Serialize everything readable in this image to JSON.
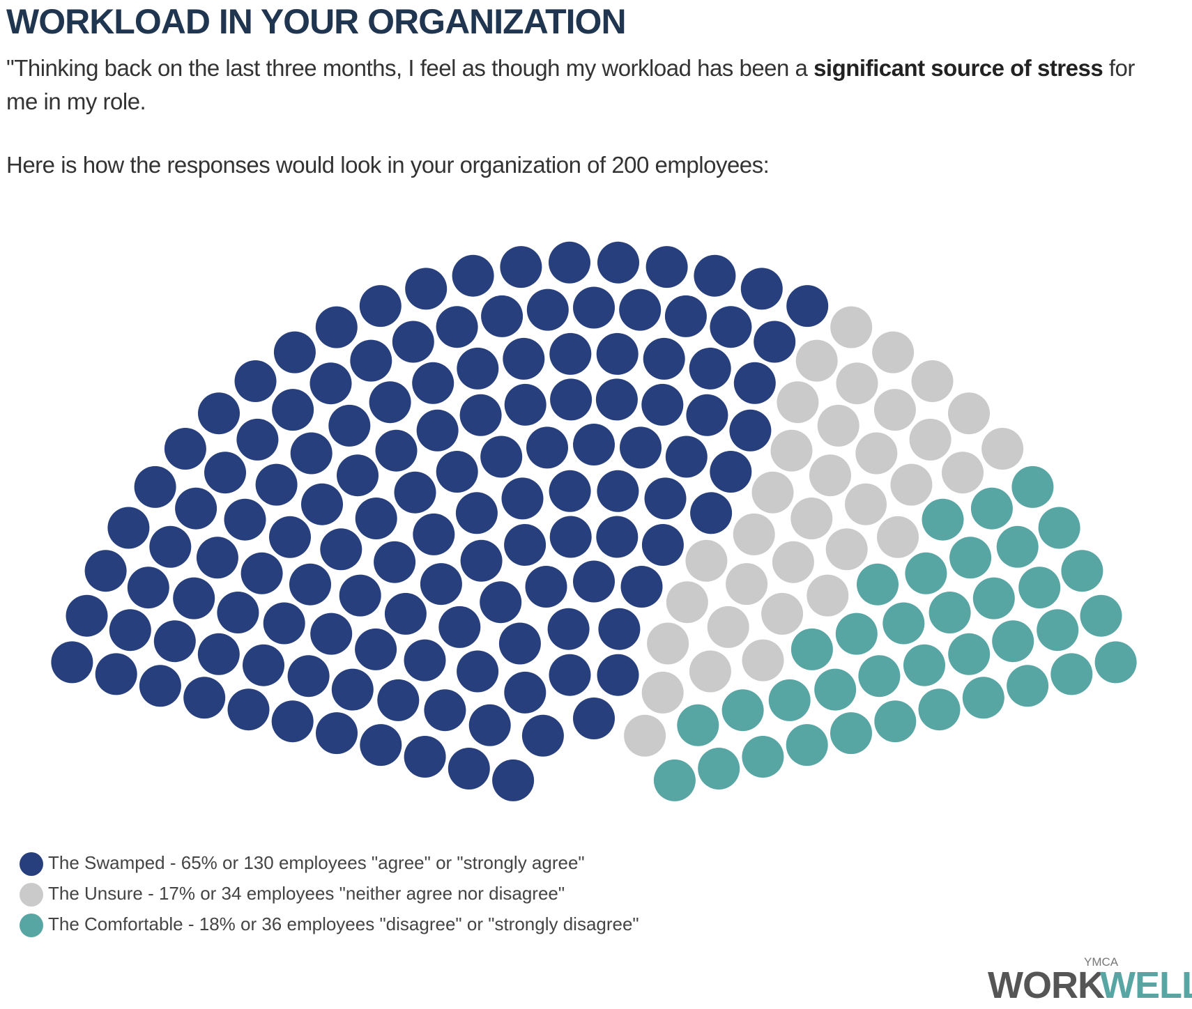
{
  "header": {
    "title": "WORKLOAD IN YOUR ORGANIZATION",
    "intro": [
      "\"Thinking back on the last three months, I feel as though my workload has been a ",
      "significant source of stress",
      " for me in my role."
    ],
    "note": "Here is how the responses would look in your organization of 200 employees:"
  },
  "chart_data": {
    "type": "parliament",
    "series": [
      {
        "name": "The Swamped - 65% or 130 employees \"agree\" or \"strongly agree\"",
        "color": "#273f7c",
        "values": [
          130
        ]
      },
      {
        "name": "The Unsure - 17% or 34 employees \"neither agree nor disagree\"",
        "color": "#cacaca",
        "values": [
          34
        ]
      },
      {
        "name": "The Comfortable - 18% or 36 employees \"disagree\" or \"strongly disagree\"",
        "color": "#57a6a4",
        "values": [
          36
        ]
      }
    ]
  },
  "logo": {
    "top": "YMCA",
    "left": "WORK",
    "right": "WELL"
  }
}
